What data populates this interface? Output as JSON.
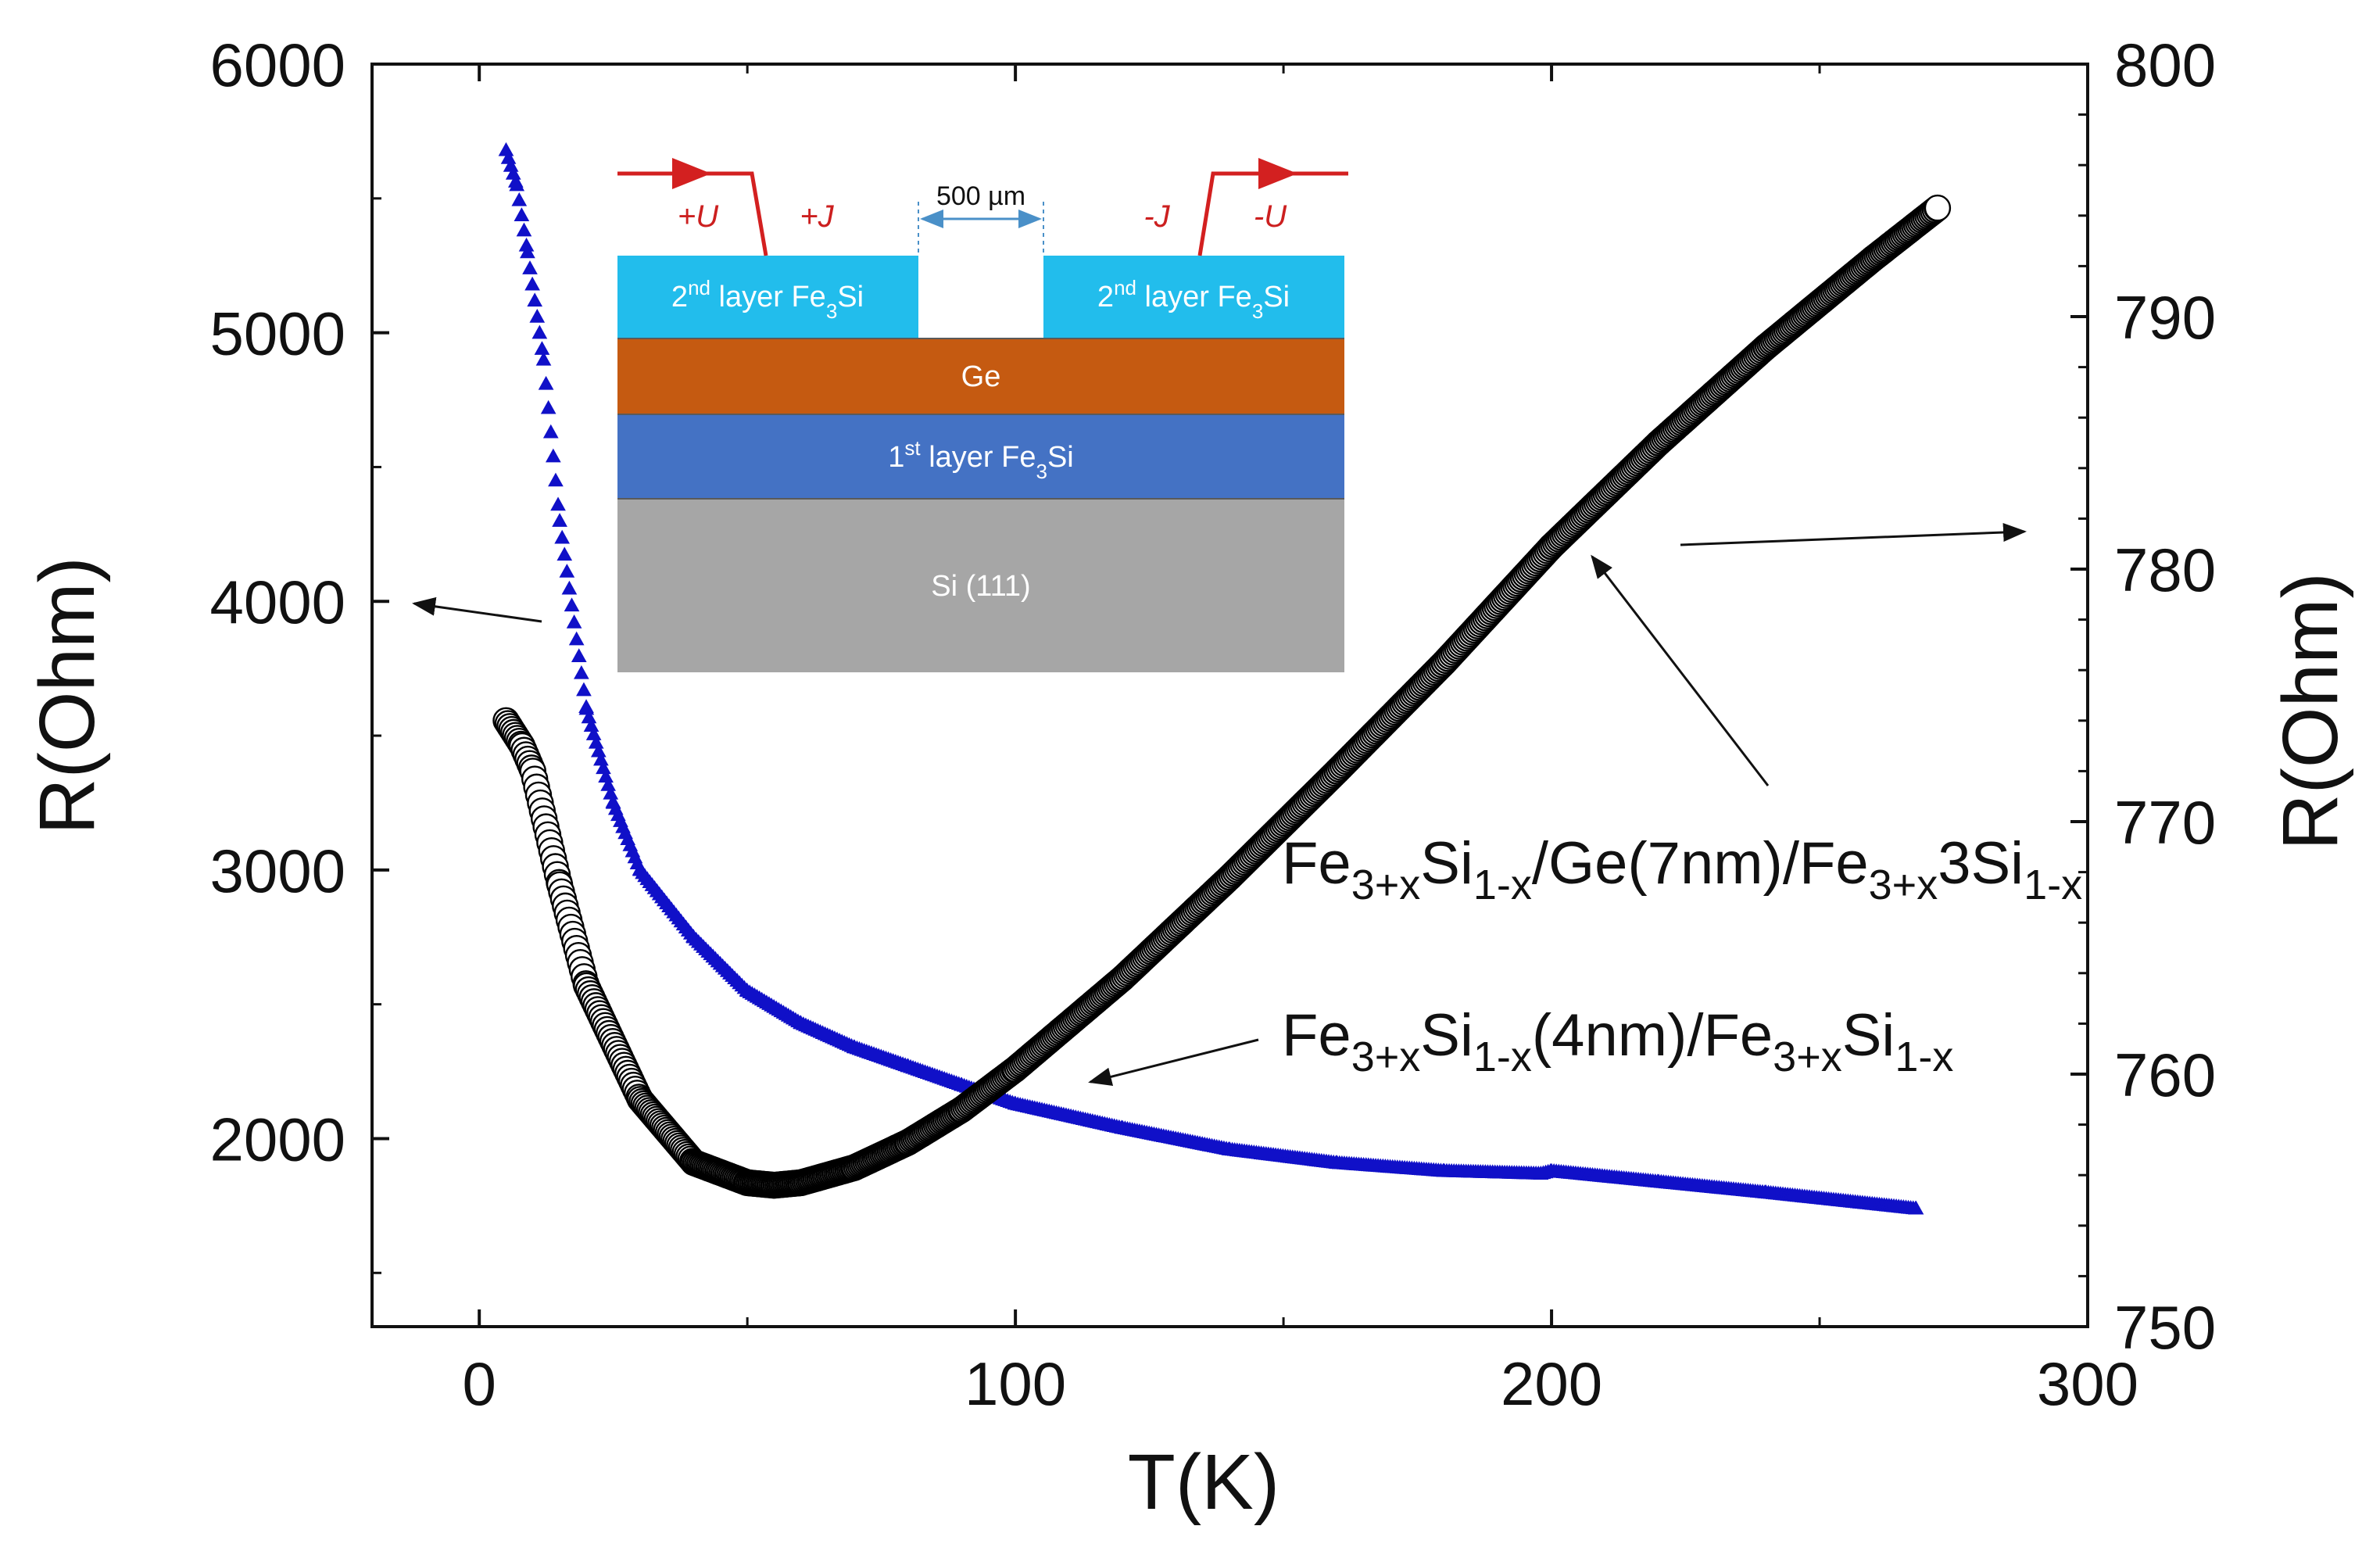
{
  "chart_data": {
    "type": "scatter",
    "title": "",
    "xlabel": "T(K)",
    "ylabel_left": "R(Ohm)",
    "ylabel_right": "R(Ohm)",
    "xlim": [
      -20,
      300
    ],
    "ylim_left": [
      1300,
      6000
    ],
    "ylim_right": [
      750,
      800
    ],
    "x_ticks": [
      0,
      100,
      200,
      300
    ],
    "y_left_ticks": [
      2000,
      3000,
      4000,
      5000,
      6000
    ],
    "y_right_ticks": [
      750,
      760,
      770,
      780,
      790,
      800
    ],
    "grid": false,
    "series": [
      {
        "name": "Fe3+xSi1-x(4nm)/Fe3+xSi1-x",
        "axis": "left",
        "color": "#1010c8",
        "marker": "triangle",
        "x": [
          5,
          7,
          9,
          12,
          15,
          20,
          25,
          30,
          40,
          50,
          60,
          70,
          80,
          90,
          100,
          120,
          140,
          160,
          180,
          198,
          200,
          220,
          240,
          268
        ],
        "y": [
          5680,
          5550,
          5300,
          4900,
          4300,
          3600,
          3250,
          3000,
          2750,
          2550,
          2430,
          2340,
          2270,
          2200,
          2130,
          2040,
          1960,
          1910,
          1880,
          1870,
          1880,
          1840,
          1800,
          1740
        ]
      },
      {
        "name": "Fe3+xSi1-x/Ge(7nm)/Fe3+x3Si1-x",
        "axis": "right",
        "color": "#000000",
        "marker": "open-circle",
        "x": [
          5,
          8,
          10,
          15,
          20,
          30,
          40,
          50,
          55,
          60,
          70,
          80,
          90,
          100,
          120,
          140,
          160,
          180,
          200,
          220,
          240,
          260,
          272
        ],
        "y": [
          774.0,
          773.0,
          772.0,
          767.5,
          763.5,
          759.0,
          756.5,
          755.7,
          755.6,
          755.7,
          756.3,
          757.3,
          758.6,
          760.2,
          763.8,
          767.8,
          772.0,
          776.3,
          780.9,
          785.0,
          788.8,
          792.3,
          794.3
        ]
      }
    ],
    "annotations": {
      "upper_pre": "Fe",
      "upper_sub1": "3+x",
      "upper_mid": "Si",
      "upper_sub2": "1-x",
      "upper_mid2": "/Ge(7nm)/Fe",
      "upper_sub3": "3+x",
      "upper_mid3": "3Si",
      "upper_sub4": "1-x",
      "lower_pre": "Fe",
      "lower_sub1": "3+x",
      "lower_mid": "Si",
      "lower_sub2": "1-x",
      "lower_mid2": "(4nm)/Fe",
      "lower_sub3": "3+x",
      "lower_mid3": "Si",
      "lower_sub4": "1-x"
    },
    "inset": {
      "dimension": "500 µm",
      "plus_u": "+U",
      "plus_j": "+J",
      "minus_j": "-J",
      "minus_u": "-U",
      "second_layer_pre": "2",
      "second_layer_sup": "nd",
      "second_layer_mid": " layer Fe",
      "second_layer_sub": "3",
      "second_layer_post": "Si",
      "ge": "Ge",
      "first_layer_pre": "1",
      "first_layer_sup": "st",
      "first_layer_mid": " layer Fe",
      "first_layer_sub": "3",
      "first_layer_post": "Si",
      "substrate": "Si (111)"
    },
    "colors": {
      "top_layer": "#22bdec",
      "ge": "#c55a11",
      "bottom_layer": "#4472c4",
      "substrate": "#a6a6a6",
      "wire": "#d32020",
      "dim_arrow": "#4a90c8"
    }
  }
}
